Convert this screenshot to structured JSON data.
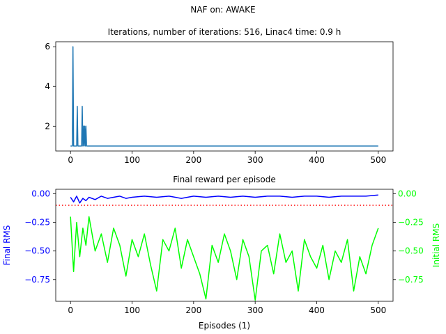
{
  "figure": {
    "suptitle": "NAF on: AWAKE"
  },
  "chart_data": [
    {
      "type": "line",
      "title": "Iterations, number of iterations: 516, Linac4 time: 0.9 h",
      "xlabel": "",
      "ylabel": "",
      "xlim": [
        -24,
        524
      ],
      "ylim": [
        0.75,
        6.25
      ],
      "xticks": [
        "0",
        "100",
        "200",
        "300",
        "400",
        "500"
      ],
      "yticks": [
        "2",
        "4",
        "6"
      ],
      "grid": false,
      "series": [
        {
          "color": "#1f77b4",
          "points": [
            [
              0,
              1
            ],
            [
              1,
              1
            ],
            [
              2,
              1
            ],
            [
              3,
              1
            ],
            [
              4,
              6
            ],
            [
              5,
              1
            ],
            [
              6,
              1
            ],
            [
              7,
              1
            ],
            [
              8,
              1
            ],
            [
              9,
              1
            ],
            [
              10,
              1
            ],
            [
              11,
              3
            ],
            [
              12,
              1
            ],
            [
              13,
              1
            ],
            [
              14,
              1
            ],
            [
              15,
              1
            ],
            [
              16,
              1
            ],
            [
              17,
              1
            ],
            [
              18,
              1
            ],
            [
              19,
              3
            ],
            [
              20,
              1
            ],
            [
              21,
              2
            ],
            [
              22,
              1
            ],
            [
              23,
              2
            ],
            [
              24,
              1
            ],
            [
              25,
              2
            ],
            [
              26,
              1
            ],
            [
              30,
              1
            ],
            [
              500,
              1
            ]
          ]
        }
      ]
    },
    {
      "type": "line",
      "title": "Final reward per episode",
      "xlabel": "Episodes (1)",
      "ylabel": "Final RMS",
      "ylabel_right": "Initial RMS",
      "xlim": [
        -24,
        524
      ],
      "ylim": [
        -0.94,
        0.04
      ],
      "xticks": [
        "0",
        "100",
        "200",
        "300",
        "400",
        "500"
      ],
      "yticks": [
        "0.00",
        "−0.25",
        "−0.50",
        "−0.75"
      ],
      "yticks_right": [
        "0.00",
        "−0.25",
        "−0.50",
        "−0.75"
      ],
      "grid": false,
      "threshold": {
        "y": -0.1,
        "color": "#ff0000",
        "style": "dotted"
      },
      "series": [
        {
          "axis": "left",
          "color": "#0000ff",
          "x": [
            0,
            5,
            10,
            15,
            20,
            25,
            30,
            40,
            50,
            60,
            70,
            80,
            90,
            100,
            120,
            140,
            160,
            180,
            200,
            220,
            240,
            260,
            280,
            300,
            320,
            340,
            360,
            380,
            400,
            420,
            440,
            460,
            480,
            500
          ],
          "values": [
            -0.03,
            -0.07,
            -0.02,
            -0.08,
            -0.04,
            -0.06,
            -0.03,
            -0.05,
            -0.02,
            -0.04,
            -0.03,
            -0.02,
            -0.04,
            -0.03,
            -0.02,
            -0.03,
            -0.02,
            -0.04,
            -0.02,
            -0.03,
            -0.02,
            -0.03,
            -0.02,
            -0.03,
            -0.02,
            -0.02,
            -0.03,
            -0.02,
            -0.02,
            -0.03,
            -0.02,
            -0.02,
            -0.02,
            -0.01
          ]
        },
        {
          "axis": "right",
          "color": "#00ff00",
          "x": [
            0,
            5,
            10,
            15,
            20,
            25,
            30,
            40,
            50,
            60,
            70,
            80,
            90,
            100,
            110,
            120,
            130,
            140,
            150,
            160,
            170,
            180,
            190,
            200,
            210,
            220,
            230,
            240,
            250,
            260,
            270,
            280,
            290,
            300,
            310,
            320,
            330,
            340,
            350,
            360,
            370,
            380,
            390,
            400,
            410,
            420,
            430,
            440,
            450,
            460,
            470,
            480,
            490,
            500
          ],
          "values": [
            -0.2,
            -0.68,
            -0.25,
            -0.55,
            -0.3,
            -0.45,
            -0.2,
            -0.5,
            -0.35,
            -0.6,
            -0.3,
            -0.45,
            -0.72,
            -0.4,
            -0.55,
            -0.35,
            -0.62,
            -0.85,
            -0.4,
            -0.5,
            -0.3,
            -0.65,
            -0.4,
            -0.55,
            -0.7,
            -0.92,
            -0.45,
            -0.6,
            -0.35,
            -0.5,
            -0.75,
            -0.4,
            -0.55,
            -0.93,
            -0.5,
            -0.45,
            -0.7,
            -0.35,
            -0.6,
            -0.5,
            -0.85,
            -0.4,
            -0.55,
            -0.65,
            -0.45,
            -0.75,
            -0.5,
            -0.6,
            -0.4,
            -0.85,
            -0.55,
            -0.7,
            -0.45,
            -0.3
          ]
        }
      ]
    }
  ]
}
